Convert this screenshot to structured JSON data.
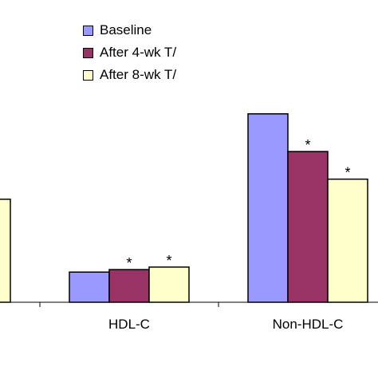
{
  "chart_data": {
    "type": "bar",
    "categories": [
      "",
      "HDL-C",
      "Non-HDL-C"
    ],
    "series": [
      {
        "name": "Baseline",
        "color": "#9999ff",
        "values": [
          null,
          12,
          75
        ]
      },
      {
        "name": "After 4-wk T/",
        "color": "#993366",
        "values": [
          null,
          13,
          60
        ]
      },
      {
        "name": "After 8-wk T/",
        "color": "#ffffcc",
        "values": [
          41,
          14,
          49
        ]
      }
    ],
    "annotations": [
      {
        "category": "HDL-C",
        "series": "After 4-wk T/",
        "text": "*"
      },
      {
        "category": "HDL-C",
        "series": "After 8-wk T/",
        "text": "*"
      },
      {
        "category": "Non-HDL-C",
        "series": "After 4-wk T/",
        "text": "*"
      },
      {
        "category": "Non-HDL-C",
        "series": "After 8-wk T/",
        "text": "*"
      }
    ],
    "title": "",
    "xlabel": "",
    "ylabel": "",
    "ylim": [
      0,
      100
    ],
    "grid": false,
    "legend_position": "top"
  }
}
